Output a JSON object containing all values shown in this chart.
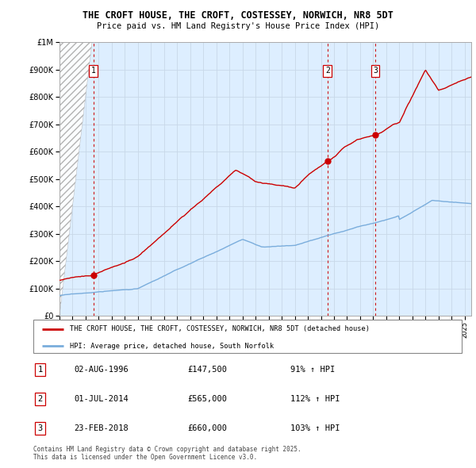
{
  "title": "THE CROFT HOUSE, THE CROFT, COSTESSEY, NORWICH, NR8 5DT",
  "subtitle": "Price paid vs. HM Land Registry's House Price Index (HPI)",
  "sale_year_floats": [
    1996.583,
    2014.5,
    2018.15
  ],
  "sale_prices": [
    147500,
    565000,
    660000
  ],
  "sale_labels": [
    "1",
    "2",
    "3"
  ],
  "sale_info": [
    {
      "num": "1",
      "date": "02-AUG-1996",
      "price": "£147,500",
      "pct": "91% ↑ HPI"
    },
    {
      "num": "2",
      "date": "01-JUL-2014",
      "price": "£565,000",
      "pct": "112% ↑ HPI"
    },
    {
      "num": "3",
      "date": "23-FEB-2018",
      "price": "£660,000",
      "pct": "103% ↑ HPI"
    }
  ],
  "legend_line1": "THE CROFT HOUSE, THE CROFT, COSTESSEY, NORWICH, NR8 5DT (detached house)",
  "legend_line2": "HPI: Average price, detached house, South Norfolk",
  "footer": "Contains HM Land Registry data © Crown copyright and database right 2025.\nThis data is licensed under the Open Government Licence v3.0.",
  "red_color": "#cc0000",
  "blue_color": "#7aaddc",
  "grid_color": "#c8d8e8",
  "bg_color": "#ddeeff",
  "dashed_line_color": "#cc0000",
  "ylim_max": 1000000,
  "x_start_year": 1994,
  "x_end_year": 2025.5
}
